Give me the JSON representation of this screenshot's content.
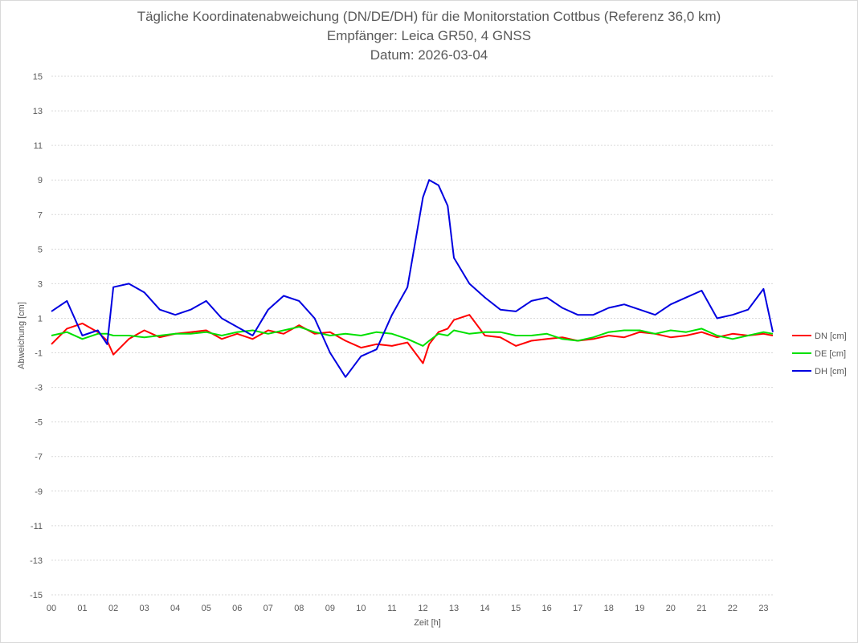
{
  "chart_data": {
    "type": "line",
    "title": "Tägliche Koordinatenabweichung (DN/DE/DH) für die Monitorstation Cottbus (Referenz 36,0 km)",
    "subtitle1": "Empfänger: Leica GR50, 4 GNSS",
    "subtitle2": "Datum: 2026-03-04",
    "xlabel": "Zeit [h]",
    "ylabel": "Abweichung [cm]",
    "xlim": [
      0,
      23.3
    ],
    "ylim": [
      -15,
      15
    ],
    "yticks": [
      15,
      13,
      11,
      9,
      7,
      5,
      3,
      1,
      -1,
      -3,
      -5,
      -7,
      -9,
      -11,
      -13,
      -15
    ],
    "xticks": [
      0,
      1,
      2,
      3,
      4,
      5,
      6,
      7,
      8,
      9,
      10,
      11,
      12,
      13,
      14,
      15,
      16,
      17,
      18,
      19,
      20,
      21,
      22,
      23
    ],
    "xtick_labels": [
      "00",
      "01",
      "02",
      "03",
      "04",
      "05",
      "06",
      "07",
      "08",
      "09",
      "10",
      "11",
      "12",
      "13",
      "14",
      "15",
      "16",
      "17",
      "18",
      "19",
      "20",
      "21",
      "22",
      "23"
    ],
    "grid": true,
    "legend_position": "right",
    "x": [
      0,
      0.5,
      1,
      1.5,
      1.8,
      2,
      2.5,
      3,
      3.5,
      4,
      4.5,
      5,
      5.5,
      6,
      6.5,
      7,
      7.5,
      8,
      8.5,
      9,
      9.5,
      10,
      10.5,
      11,
      11.5,
      12,
      12.2,
      12.5,
      12.8,
      13,
      13.5,
      14,
      14.5,
      15,
      15.5,
      16,
      16.5,
      17,
      17.5,
      18,
      18.5,
      19,
      19.5,
      20,
      20.5,
      21,
      21.5,
      22,
      22.5,
      23,
      23.3
    ],
    "series": [
      {
        "name": "DN [cm]",
        "color": "#ff0000",
        "values": [
          -0.5,
          0.4,
          0.7,
          0.2,
          -0.3,
          -1.1,
          -0.2,
          0.3,
          -0.1,
          0.1,
          0.2,
          0.3,
          -0.2,
          0.1,
          -0.2,
          0.3,
          0.1,
          0.6,
          0.1,
          0.2,
          -0.3,
          -0.7,
          -0.5,
          -0.6,
          -0.4,
          -1.6,
          -0.5,
          0.2,
          0.4,
          0.9,
          1.2,
          0.0,
          -0.1,
          -0.6,
          -0.3,
          -0.2,
          -0.1,
          -0.3,
          -0.2,
          0.0,
          -0.1,
          0.2,
          0.1,
          -0.1,
          0.0,
          0.2,
          -0.1,
          0.1,
          0.0,
          0.1,
          0.0
        ]
      },
      {
        "name": "DE [cm]",
        "color": "#00e000",
        "values": [
          0.0,
          0.2,
          -0.2,
          0.1,
          0.1,
          0.0,
          0.0,
          -0.1,
          0.0,
          0.1,
          0.1,
          0.2,
          0.0,
          0.2,
          0.3,
          0.1,
          0.3,
          0.5,
          0.2,
          0.0,
          0.1,
          0.0,
          0.2,
          0.1,
          -0.2,
          -0.6,
          -0.3,
          0.1,
          0.0,
          0.3,
          0.1,
          0.2,
          0.2,
          0.0,
          0.0,
          0.1,
          -0.2,
          -0.3,
          -0.1,
          0.2,
          0.3,
          0.3,
          0.1,
          0.3,
          0.2,
          0.4,
          0.0,
          -0.2,
          0.0,
          0.2,
          0.1
        ]
      },
      {
        "name": "DH [cm]",
        "color": "#0000e0",
        "values": [
          1.4,
          2.0,
          0.0,
          0.3,
          -0.5,
          2.8,
          3.0,
          2.5,
          1.5,
          1.2,
          1.5,
          2.0,
          1.0,
          0.5,
          0.0,
          1.5,
          2.3,
          2.0,
          1.0,
          -1.0,
          -2.4,
          -1.2,
          -0.8,
          1.2,
          2.8,
          8.0,
          9.0,
          8.7,
          7.5,
          4.5,
          3.0,
          2.2,
          1.5,
          1.4,
          2.0,
          2.2,
          1.6,
          1.2,
          1.2,
          1.6,
          1.8,
          1.5,
          1.2,
          1.8,
          2.2,
          2.6,
          1.0,
          1.2,
          1.5,
          2.7,
          0.2
        ]
      }
    ]
  }
}
